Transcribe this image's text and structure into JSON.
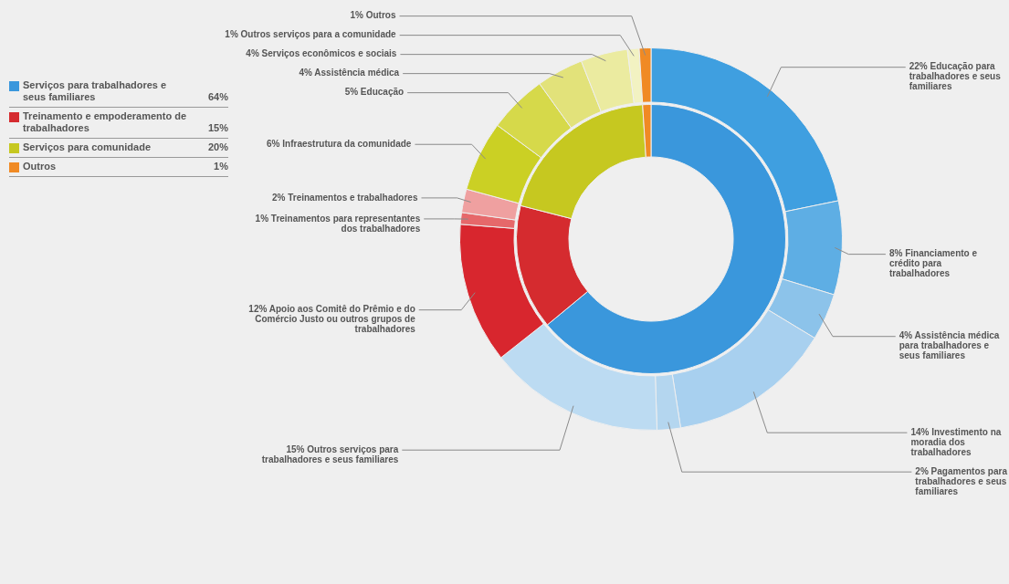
{
  "chart_data": [
    {
      "type": "donut",
      "legend": "top left",
      "categories": [
        "Serviços para trabalhadores e seus familiares",
        "Treinamento e empoderamento de trabalhadores",
        "Serviços para comunidade",
        "Outros"
      ],
      "values": [
        64,
        15,
        20,
        1
      ],
      "colors": [
        "#3a97dc",
        "#d52b2f",
        "#c6c820",
        "#f08a24"
      ],
      "value_labels": [
        "64%",
        "15%",
        "20%",
        "1%"
      ]
    },
    {
      "type": "donut",
      "categories": [
        "22% Educação para trabalhadores e seus familiares",
        "8% Financiamento e crédito para trabalhadores",
        "4% Assistência médica para trabalhadores e seus familiares",
        "14% Investimento na moradia dos trabalhadores",
        "2% Pagamentos para trabalhadores e seus familiares",
        "15% Outros serviços para trabalhadores e seus familiares",
        "12% Apoio aos Comitê do Prêmio e do Comércio Justo ou outros grupos de trabalhadores",
        "1% Treinamentos para representantes dos trabalhadores",
        "2% Treinamentos e trabalhadores",
        "6% Infraestrutura da comunidade",
        "5% Educação",
        "4% Assistência médica",
        "4% Serviços econômicos e sociais",
        "1% Outros serviços para a comunidade",
        "1% Outros"
      ],
      "values": [
        22,
        8,
        4,
        14,
        2,
        15,
        12,
        1,
        2,
        6,
        5,
        4,
        4,
        1,
        1
      ],
      "colors": [
        "#3f9fe0",
        "#5eaee4",
        "#8cc3ea",
        "#a8d0ef",
        "#b4d6ef",
        "#bcdbf2",
        "#d8262e",
        "#e6686a",
        "#efa0a0",
        "#cbd024",
        "#d6d94a",
        "#e2e27a",
        "#ebeba0",
        "#f2f2c2",
        "#f08a24"
      ]
    }
  ]
}
